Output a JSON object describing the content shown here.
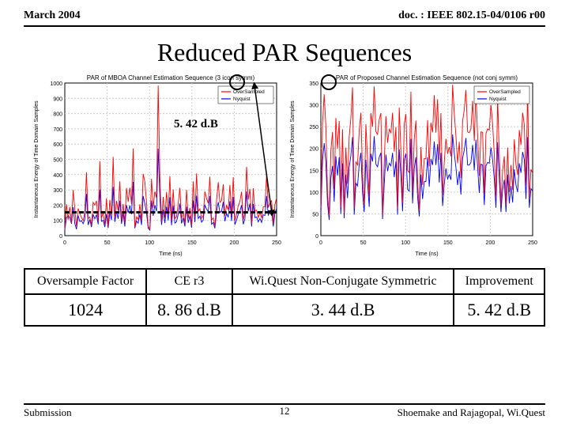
{
  "header": {
    "left": "March 2004",
    "right": "doc. : IEEE 802.15-04/0106 r00"
  },
  "title": "Reduced PAR Sequences",
  "footer": {
    "left": "Submission",
    "right": "Shoemake and Rajagopal, Wi.Quest",
    "page": "12"
  },
  "annotation": {
    "db_label": "5. 42 d.B"
  },
  "chart_common": {
    "xlabel": "Time (ns)",
    "ylabel": "Instantaneous Energy of Time Domain Samples",
    "xlim": [
      0,
      250
    ],
    "xtick_step": 50,
    "grid_color": "#cccccc",
    "bg": "#ffffff",
    "title_fontsize": 8,
    "tick_fontsize": 7,
    "label_fontsize": 7,
    "line_width": 0.9,
    "legend_items": [
      "OverSampled",
      "Nyquist"
    ],
    "colors": {
      "oversampled": "#ff0000",
      "nyquist": "#0000ff",
      "axis": "#000000"
    }
  },
  "chart_left": {
    "title": "PAR of MBOA Channel Estimation Sequence (3 icon symm)",
    "ylim": [
      0,
      1000
    ],
    "ytick_step": 100,
    "dash_level": 250,
    "series_oversampled": [
      44,
      206,
      104,
      188,
      85,
      299,
      171,
      61,
      178,
      148,
      118,
      99,
      152,
      415,
      112,
      122,
      68,
      218,
      200,
      228,
      94,
      488,
      116,
      151,
      73,
      244,
      59,
      234,
      131,
      516,
      120,
      228,
      164,
      356,
      95,
      208,
      83,
      312,
      221,
      314,
      206,
      571,
      53,
      123,
      107,
      206,
      96,
      405,
      352,
      219,
      60,
      44,
      373,
      182,
      289,
      248,
      984,
      385,
      94,
      254,
      116,
      287,
      136,
      390,
      96,
      303,
      111,
      124,
      208,
      313,
      111,
      159,
      77,
      300,
      113,
      182,
      67,
      355,
      120,
      408,
      159,
      175,
      113,
      131,
      289,
      244,
      211,
      386,
      102,
      116,
      62,
      233,
      350,
      217,
      231,
      336,
      130,
      198,
      170,
      332,
      131,
      383,
      99,
      137,
      197,
      224,
      288,
      103,
      154,
      451,
      236,
      306,
      78,
      311,
      163,
      167,
      118,
      153,
      115,
      189,
      189,
      403,
      184,
      212,
      228,
      82,
      204,
      247
    ],
    "series_nyquist": [
      38,
      118,
      130,
      120,
      78,
      186,
      80,
      42,
      132,
      92,
      98,
      78,
      108,
      274,
      70,
      104,
      56,
      140,
      110,
      138,
      74,
      302,
      94,
      100,
      56,
      140,
      50,
      150,
      102,
      320,
      90,
      160,
      110,
      230,
      78,
      146,
      60,
      200,
      150,
      198,
      140,
      352,
      48,
      96,
      82,
      140,
      70,
      260,
      210,
      150,
      48,
      36,
      230,
      130,
      200,
      160,
      570,
      252,
      70,
      170,
      82,
      190,
      100,
      252,
      68,
      196,
      82,
      92,
      140,
      210,
      80,
      116,
      60,
      190,
      84,
      130,
      52,
      230,
      88,
      262,
      112,
      128,
      88,
      102,
      200,
      174,
      158,
      260,
      74,
      86,
      48,
      158,
      220,
      152,
      160,
      222,
      94,
      146,
      120,
      226,
      96,
      254,
      72,
      102,
      140,
      160,
      200,
      74,
      110,
      290,
      160,
      210,
      60,
      208,
      118,
      122,
      90,
      112,
      86,
      136,
      132,
      260,
      134,
      152,
      164,
      60,
      148,
      178
    ]
  },
  "chart_right": {
    "title": "PAR of Proposed Channel Estimation Sequence (not conj symm)",
    "ylim": [
      0,
      350
    ],
    "ytick_step": 50,
    "series_oversampled": [
      64,
      258,
      324,
      252,
      98,
      46,
      195,
      238,
      107,
      270,
      200,
      263,
      65,
      244,
      52,
      202,
      119,
      227,
      270,
      340,
      62,
      169,
      162,
      241,
      282,
      139,
      71,
      256,
      174,
      90,
      281,
      250,
      342,
      239,
      232,
      266,
      281,
      48,
      167,
      274,
      213,
      244,
      236,
      282,
      193,
      249,
      62,
      294,
      197,
      74,
      256,
      279,
      149,
      145,
      330,
      100,
      222,
      264,
      126,
      57,
      203,
      116,
      177,
      176,
      265,
      159,
      259,
      237,
      322,
      236,
      313,
      174,
      281,
      93,
      169,
      222,
      188,
      203,
      182,
      346,
      281,
      228,
      166,
      215,
      132,
      263,
      289,
      334,
      238,
      236,
      245,
      309,
      217,
      328,
      230,
      137,
      238,
      237,
      96,
      234,
      245,
      242,
      300,
      256,
      186,
      88,
      316,
      187,
      71,
      150,
      182,
      70,
      202,
      100,
      162,
      105,
      221,
      164,
      139,
      242,
      208,
      282,
      254,
      116,
      336,
      86,
      152,
      143
    ],
    "series_nyquist": [
      48,
      172,
      212,
      168,
      74,
      36,
      132,
      160,
      78,
      182,
      138,
      180,
      50,
      166,
      40,
      140,
      86,
      156,
      184,
      226,
      48,
      120,
      114,
      164,
      190,
      98,
      54,
      174,
      122,
      66,
      188,
      170,
      228,
      164,
      158,
      180,
      190,
      38,
      118,
      186,
      148,
      166,
      160,
      190,
      134,
      170,
      48,
      198,
      138,
      56,
      174,
      188,
      106,
      102,
      222,
      74,
      154,
      180,
      90,
      44,
      140,
      84,
      124,
      124,
      180,
      112,
      176,
      162,
      216,
      162,
      210,
      122,
      190,
      68,
      118,
      154,
      130,
      140,
      128,
      232,
      190,
      156,
      116,
      148,
      94,
      178,
      196,
      224,
      162,
      162,
      168,
      208,
      150,
      220,
      158,
      98,
      164,
      162,
      70,
      160,
      168,
      166,
      202,
      174,
      130,
      64,
      214,
      130,
      54,
      106,
      128,
      54,
      140,
      74,
      114,
      76,
      152,
      116,
      100,
      166,
      144,
      192,
      174,
      84,
      226,
      64,
      108,
      102
    ]
  },
  "table": {
    "headers": [
      "Oversample Factor",
      "CE r3",
      "Wi.Quest Non-Conjugate Symmetric",
      "Improvement"
    ],
    "row": [
      "1024",
      "8. 86 d.B",
      "3. 44 d.B",
      "5. 42 d.B"
    ]
  }
}
